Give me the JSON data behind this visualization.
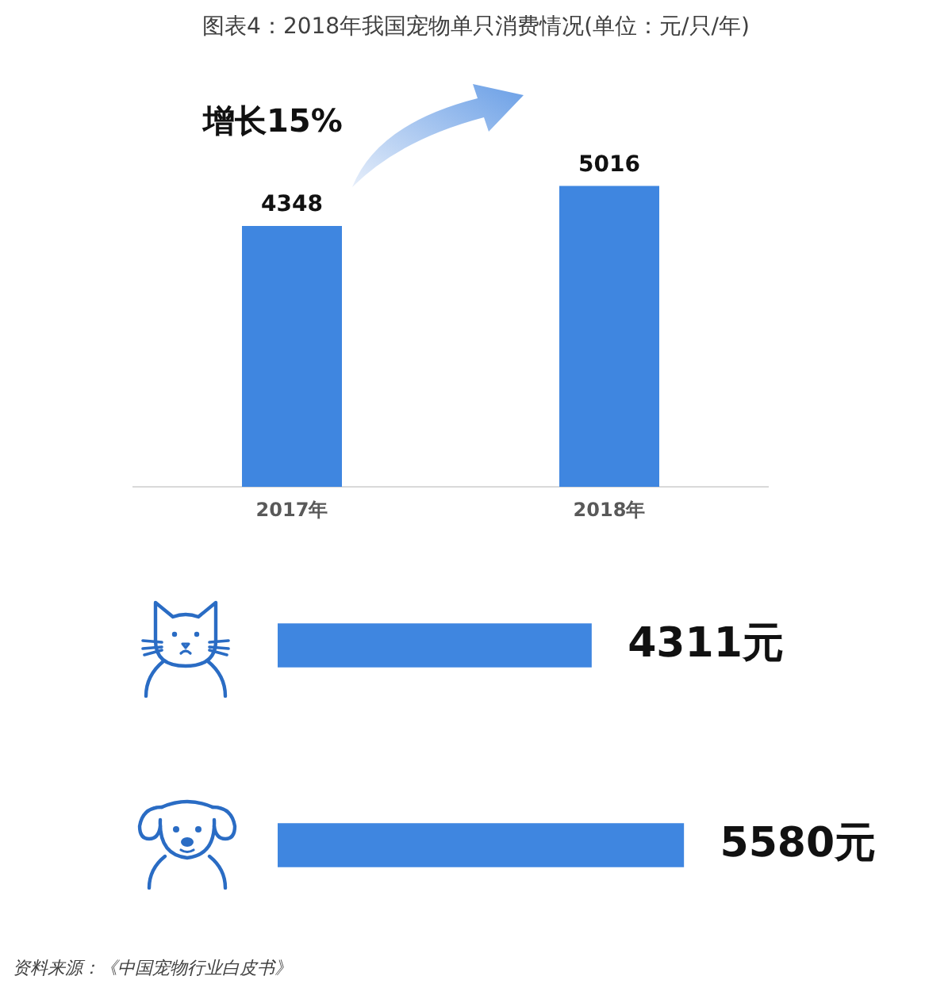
{
  "chart_data": [
    {
      "type": "bar",
      "title": "图表4：2018年我国宠物单只消费情况(单位：元/只/年)",
      "categories": [
        "2017年",
        "2018年"
      ],
      "values": [
        4348,
        5016
      ],
      "color": "#3f86e0",
      "data_labels": true,
      "tick_labels": "x",
      "annotations": [
        "增长15%"
      ]
    },
    {
      "type": "bar",
      "orientation": "horizontal",
      "categories": [
        null,
        null
      ],
      "values": [
        4311,
        5580
      ],
      "color": "#3f86e0",
      "value_labels": [
        "4311元",
        "5580元"
      ],
      "tick_labels": false,
      "annotations": [
        "资料来源：《中国宠物行业白皮书》"
      ]
    }
  ]
}
